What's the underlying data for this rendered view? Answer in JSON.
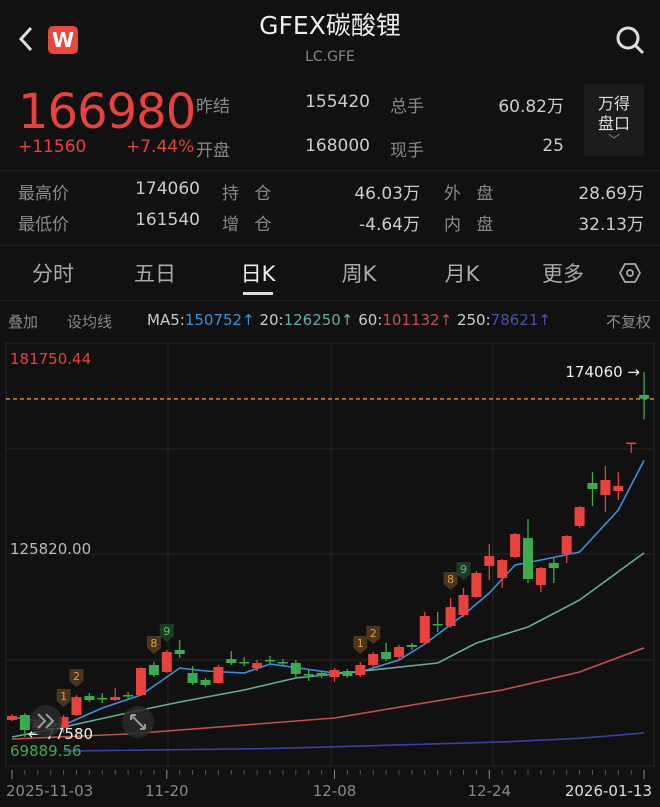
{
  "header": {
    "title": "GFEX碳酸锂",
    "symbol": "LC.GFE",
    "logo_text": "W",
    "back_icon": "chevron-left-icon",
    "search_icon": "search-icon"
  },
  "quote": {
    "last": "166980",
    "change": "+11560",
    "change_pct": "+7.44%",
    "prev_settle_label": "昨结",
    "prev_settle": "155420",
    "volume_label": "总手",
    "volume": "60.82万",
    "open_label": "开盘",
    "open": "168000",
    "cur_vol_label": "现手",
    "cur_vol": "25",
    "wind_button": "万得盘口",
    "high_label": "最高价",
    "high": "174060",
    "oi_label": "持 仓",
    "oi": "46.03万",
    "outer_label": "外 盘",
    "outer": "28.69万",
    "low_label": "最低价",
    "low": "161540",
    "oi_chg_label": "增 仓",
    "oi_chg": "-4.64万",
    "inner_label": "内 盘",
    "inner": "32.13万"
  },
  "tabs": [
    {
      "label": "分时"
    },
    {
      "label": "五日"
    },
    {
      "label": "日K",
      "active": true
    },
    {
      "label": "周K"
    },
    {
      "label": "月K"
    },
    {
      "label": "更多"
    }
  ],
  "settings_icon": "hexagon-gear-icon",
  "legend": {
    "overlay": "叠加",
    "set_ma": "设均线",
    "ma5_label": "MA5:",
    "ma5": "150752↑",
    "ma20_label": "20:",
    "ma20": "126250↑",
    "ma60_label": "60:",
    "ma60": "101132↑",
    "ma250_label": "250:",
    "ma250": "78621↑",
    "adjust": "不复权"
  },
  "colors": {
    "up": "#e8413e",
    "down": "#3daa4f",
    "ma5": "#3d8fd8",
    "ma20": "#66aaa4",
    "ma60": "#c2504e",
    "ma250": "#3a40a0",
    "last_line": "#e08a2a"
  },
  "chart_data": {
    "type": "candlestick",
    "yaxis": {
      "max": "181750.44",
      "mid": "125820.00",
      "min": "69889.56"
    },
    "x_tick_labels": [
      {
        "i": 0,
        "label": "2025-11-03"
      },
      {
        "i": 12,
        "label": "11-20"
      },
      {
        "i": 25,
        "label": "12-08"
      },
      {
        "i": 37,
        "label": "12-24"
      },
      {
        "i": 49,
        "label": "2026-01-13"
      }
    ],
    "high_marker": "174060 →",
    "low_marker": "← 77580",
    "last_price": 166980,
    "candles_ohlc": [
      [
        82050,
        83640,
        81790,
        83110
      ],
      [
        83370,
        83900,
        77580,
        79410
      ],
      [
        79940,
        82320,
        79410,
        81520
      ],
      [
        81520,
        82320,
        79140,
        80200
      ],
      [
        79940,
        83370,
        78610,
        82850
      ],
      [
        83370,
        88660,
        83110,
        88130
      ],
      [
        88400,
        89190,
        86810,
        87340
      ],
      [
        87870,
        89190,
        86550,
        87610
      ],
      [
        87340,
        90510,
        87080,
        88130
      ],
      [
        88660,
        89460,
        87610,
        88400
      ],
      [
        88660,
        96070,
        88400,
        95800
      ],
      [
        96600,
        97390,
        93420,
        93950
      ],
      [
        94750,
        100560,
        94480,
        100040
      ],
      [
        100560,
        103210,
        98450,
        99510
      ],
      [
        94480,
        96330,
        91310,
        91840
      ],
      [
        92630,
        93160,
        90780,
        91310
      ],
      [
        91840,
        96600,
        91570,
        96070
      ],
      [
        98180,
        100300,
        96600,
        97130
      ],
      [
        97390,
        98710,
        96330,
        97130
      ],
      [
        95800,
        97920,
        95010,
        97130
      ],
      [
        97920,
        98980,
        96860,
        97650
      ],
      [
        97390,
        98180,
        96330,
        97130
      ],
      [
        97130,
        97920,
        93420,
        94220
      ],
      [
        94220,
        95280,
        92370,
        93950
      ],
      [
        94480,
        95010,
        93160,
        93690
      ],
      [
        93420,
        95800,
        92100,
        95280
      ],
      [
        95010,
        95540,
        93160,
        93690
      ],
      [
        93950,
        97390,
        93420,
        96600
      ],
      [
        96600,
        100040,
        96070,
        99510
      ],
      [
        100040,
        102420,
        97650,
        98180
      ],
      [
        98710,
        101890,
        98180,
        101360
      ],
      [
        101890,
        102420,
        100560,
        101360
      ],
      [
        102420,
        110610,
        102150,
        109560
      ],
      [
        107440,
        110610,
        105320,
        107170
      ],
      [
        106910,
        114320,
        106380,
        111930
      ],
      [
        109820,
        116960,
        109290,
        115110
      ],
      [
        114580,
        121450,
        114320,
        120920
      ],
      [
        122780,
        128590,
        119070,
        125420
      ],
      [
        119600,
        124630,
        116960,
        124360
      ],
      [
        125160,
        131500,
        124890,
        131240
      ],
      [
        130180,
        135210,
        118280,
        119340
      ],
      [
        117750,
        122510,
        115900,
        122250
      ],
      [
        123570,
        125160,
        118280,
        122250
      ],
      [
        125950,
        130980,
        123570,
        130710
      ],
      [
        133360,
        138640,
        132830,
        138380
      ],
      [
        144730,
        147640,
        138640,
        143140
      ],
      [
        141550,
        149220,
        137060,
        145520
      ],
      [
        142610,
        147640,
        140230,
        143930
      ],
      [
        155420,
        155420,
        152660,
        155420
      ],
      [
        168000,
        174060,
        161540,
        166980
      ]
    ],
    "ma": [
      {
        "key": "ma5",
        "points": [
          [
            0,
            82850
          ],
          [
            4,
            80730
          ],
          [
            7,
            85230
          ],
          [
            10,
            88660
          ],
          [
            13,
            95800
          ],
          [
            15,
            95010
          ],
          [
            18,
            94480
          ],
          [
            20,
            96860
          ],
          [
            25,
            94480
          ],
          [
            27,
            94750
          ],
          [
            30,
            97920
          ],
          [
            32,
            102150
          ],
          [
            35,
            109820
          ],
          [
            37,
            115640
          ],
          [
            39,
            123040
          ],
          [
            41,
            124360
          ],
          [
            44,
            126480
          ],
          [
            47,
            137590
          ],
          [
            49,
            150752
          ]
        ]
      },
      {
        "key": "ma20",
        "points": [
          [
            0,
            77560
          ],
          [
            4,
            80200
          ],
          [
            10,
            84700
          ],
          [
            13,
            86810
          ],
          [
            18,
            89990
          ],
          [
            22,
            93160
          ],
          [
            25,
            94220
          ],
          [
            33,
            97130
          ],
          [
            36,
            102420
          ],
          [
            40,
            106650
          ],
          [
            44,
            113790
          ],
          [
            49,
            126250
          ]
        ]
      },
      {
        "key": "ma60",
        "points": [
          [
            0,
            77030
          ],
          [
            9,
            78350
          ],
          [
            25,
            82580
          ],
          [
            38,
            89990
          ],
          [
            44,
            94750
          ],
          [
            49,
            101132
          ]
        ]
      },
      {
        "key": "ma250",
        "points": [
          [
            4,
            73850
          ],
          [
            20,
            74500
          ],
          [
            38,
            76240
          ],
          [
            44,
            77200
          ],
          [
            49,
            78621
          ]
        ]
      }
    ],
    "td_marks": [
      {
        "i": 4,
        "label": "1"
      },
      {
        "i": 5,
        "label": "2"
      },
      {
        "i": 11,
        "label": "8"
      },
      {
        "i": 12,
        "label": "9"
      },
      {
        "i": 27,
        "label": "1"
      },
      {
        "i": 28,
        "label": "2"
      },
      {
        "i": 34,
        "label": "8"
      },
      {
        "i": 35,
        "label": "9"
      }
    ]
  },
  "overlay_buttons": {
    "scroll_icon": "double-chevron-right-icon",
    "expand_icon": "expand-arrows-icon"
  }
}
